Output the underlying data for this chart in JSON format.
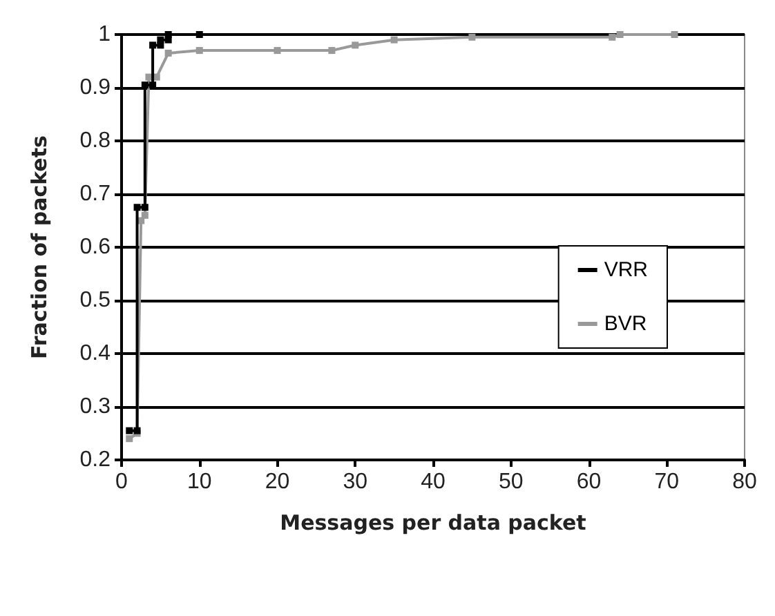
{
  "chart_data": {
    "type": "step",
    "xlabel": "Messages per data packet",
    "ylabel": "Fraction of packets",
    "series": [
      {
        "name": "VRR",
        "color": "#000000",
        "x": [
          1,
          2,
          2,
          3,
          3,
          4,
          4,
          5,
          5,
          6,
          6,
          10
        ],
        "values": [
          0.255,
          0.255,
          0.675,
          0.675,
          0.905,
          0.905,
          0.98,
          0.98,
          0.99,
          0.99,
          1,
          1
        ]
      },
      {
        "name": "BVR",
        "color": "#999999",
        "x": [
          1,
          2,
          2.5,
          3,
          3.5,
          4.5,
          6,
          10,
          20,
          27,
          30,
          35,
          45,
          63,
          64,
          71
        ],
        "values": [
          0.24,
          0.25,
          0.65,
          0.66,
          0.92,
          0.92,
          0.965,
          0.97,
          0.97,
          0.97,
          0.98,
          0.99,
          0.995,
          0.995,
          1,
          1
        ]
      }
    ],
    "xlim": [
      0,
      80
    ],
    "xticks": [
      0,
      10,
      20,
      30,
      40,
      50,
      60,
      70,
      80
    ],
    "ylim": [
      0.2,
      1
    ],
    "yticks": [
      0.2,
      0.3,
      0.4,
      0.5,
      0.6,
      0.7,
      0.8,
      0.9,
      1
    ],
    "grid": "y",
    "legend": "right",
    "marker": "square",
    "line_style": "solid"
  }
}
